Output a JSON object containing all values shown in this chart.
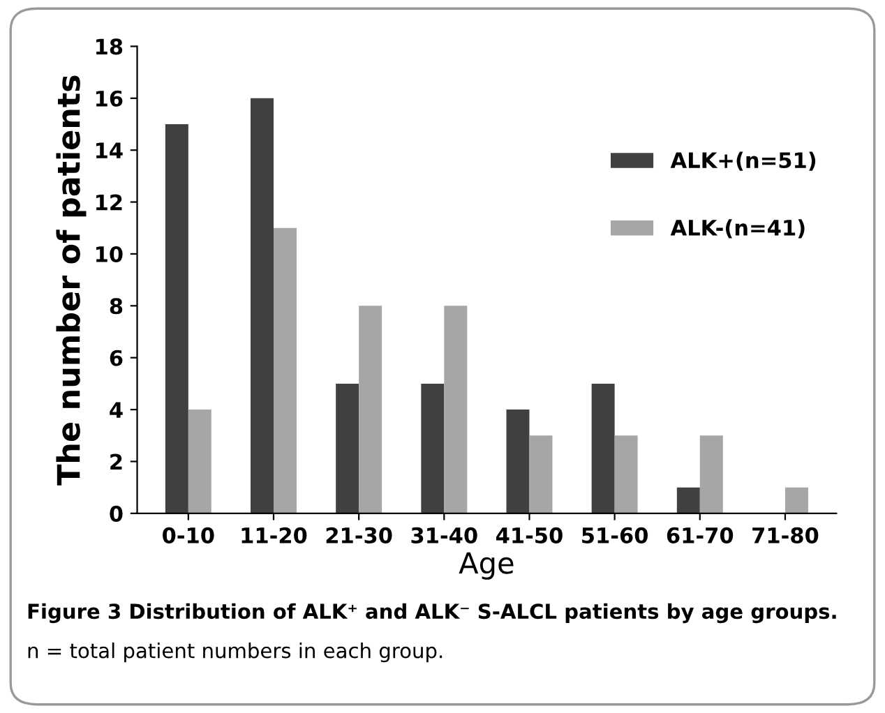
{
  "chart_data": {
    "type": "bar",
    "xlabel": "Age",
    "ylabel": "The number of patients",
    "categories": [
      "0-10",
      "11-20",
      "21-30",
      "31-40",
      "41-50",
      "51-60",
      "61-70",
      "71-80"
    ],
    "series": [
      {
        "name": "ALK+(n=51)",
        "color": "#404040",
        "values": [
          15,
          16,
          5,
          5,
          4,
          5,
          1,
          0
        ]
      },
      {
        "name": "ALK-(n=41)",
        "color": "#a6a6a6",
        "values": [
          4,
          11,
          8,
          8,
          3,
          3,
          3,
          1
        ]
      }
    ],
    "ylim": [
      0,
      18
    ],
    "yticks": [
      0,
      2,
      4,
      6,
      8,
      10,
      12,
      14,
      16,
      18
    ],
    "grid": false,
    "legend": "right",
    "annotations": [
      "Figure 3 Distribution of ALK⁺ and ALK⁻ S-ALCL patients by age groups.",
      "n = total patient numbers in each group."
    ]
  }
}
